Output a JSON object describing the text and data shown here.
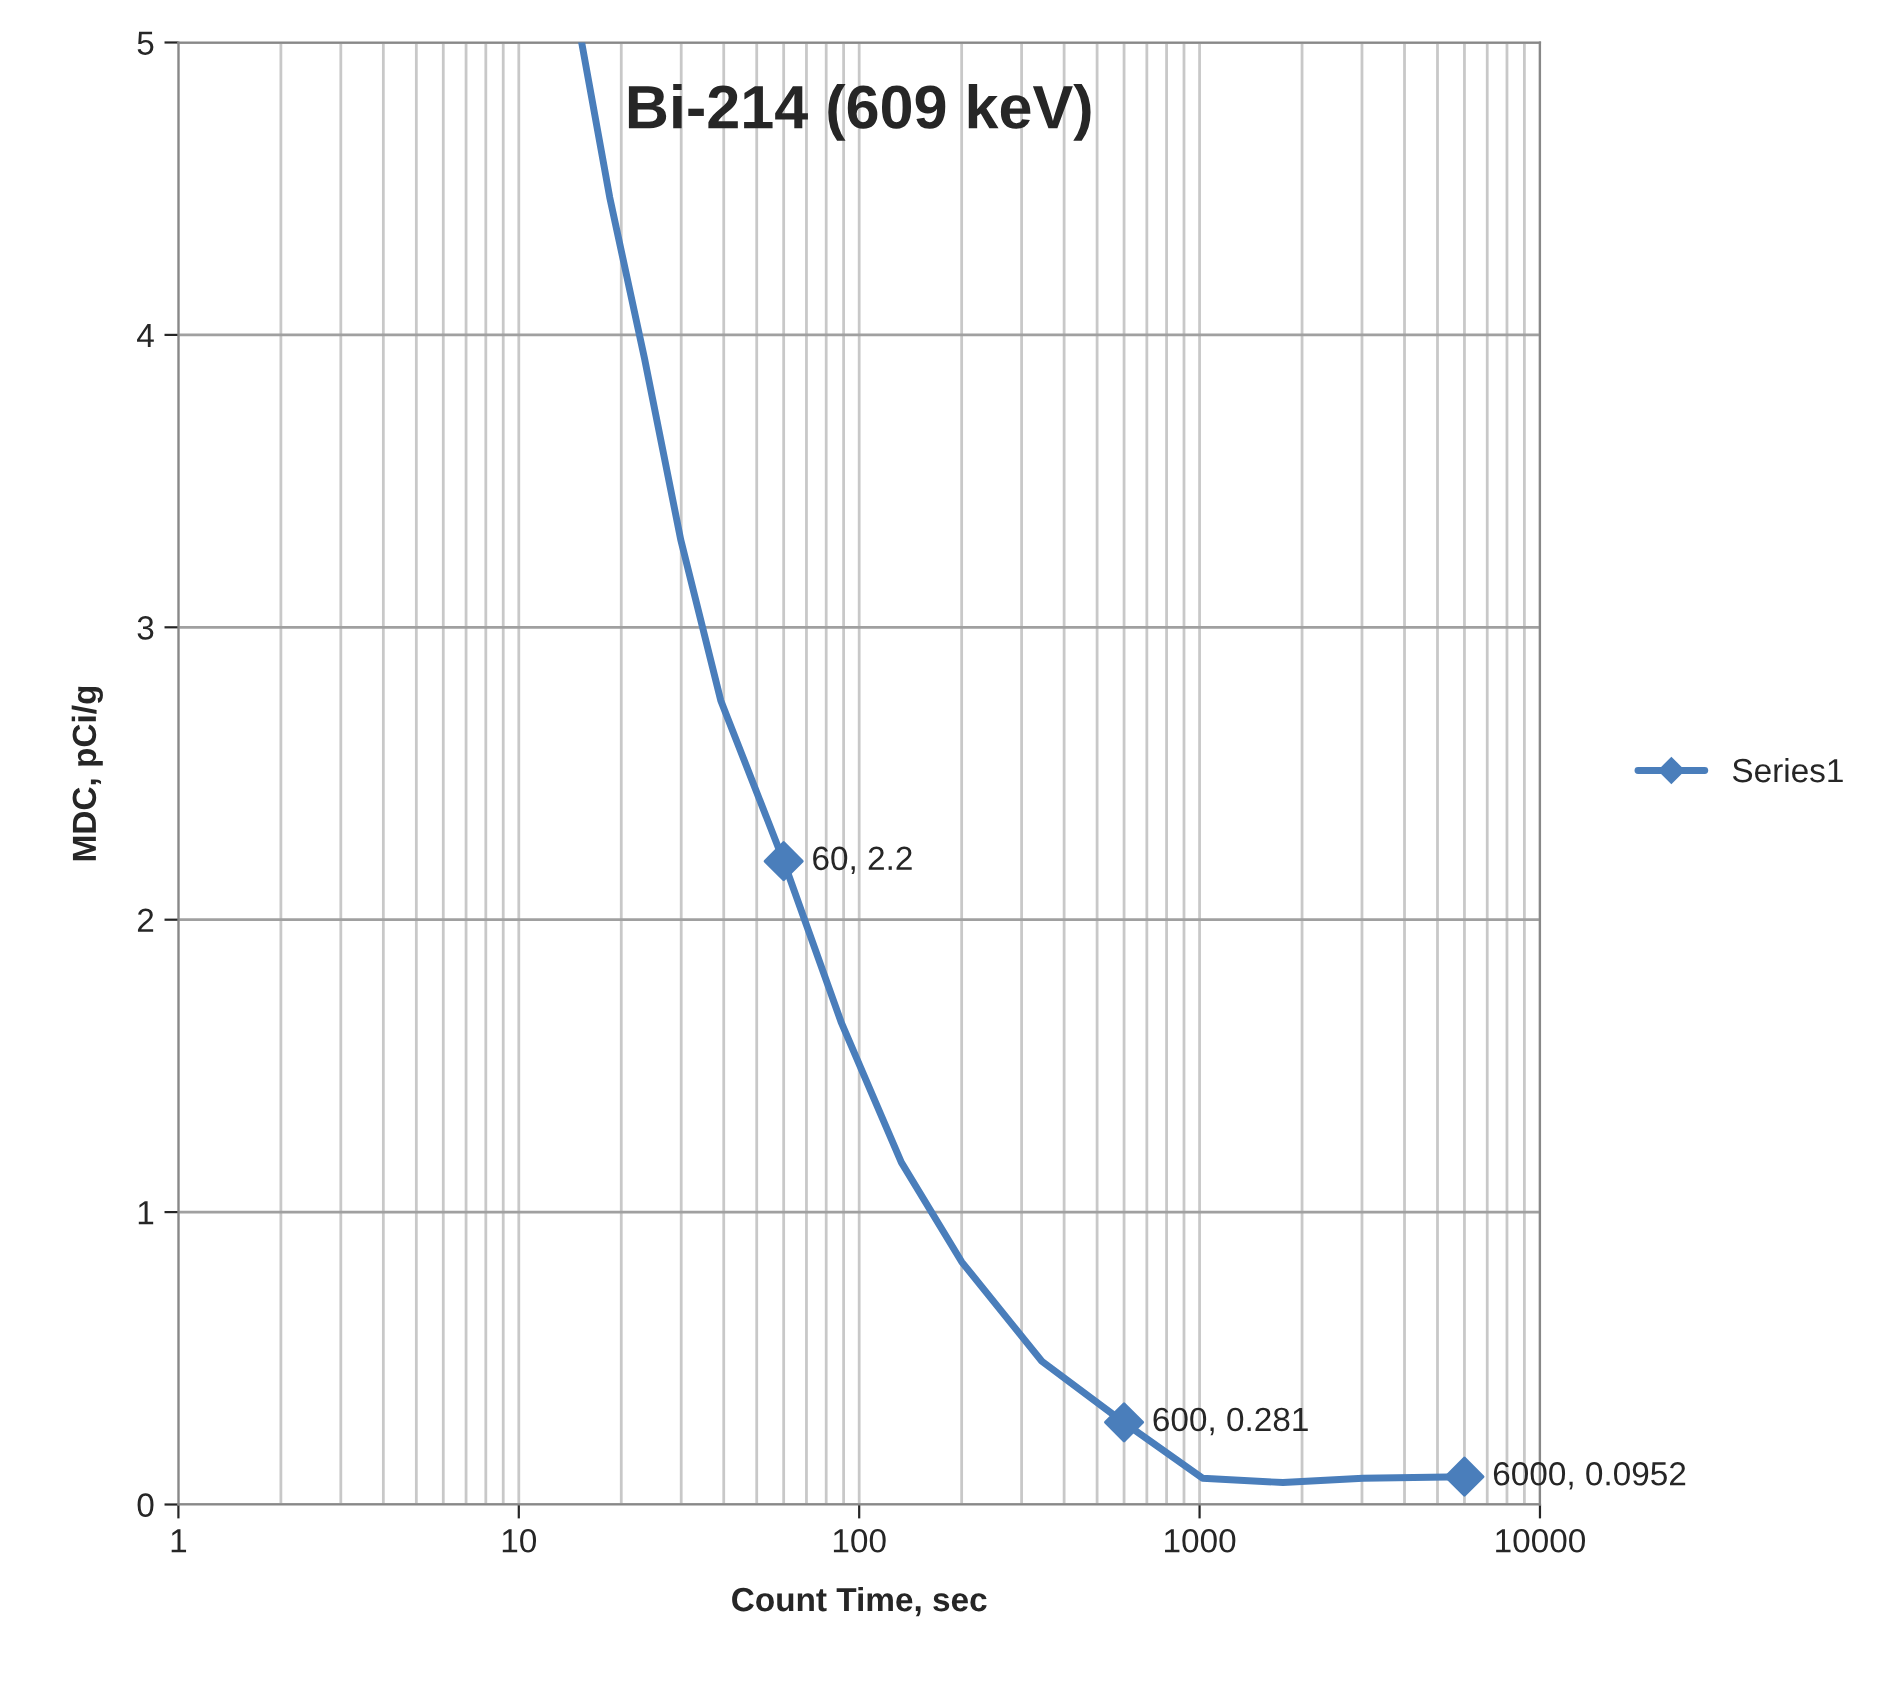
{
  "chart_data": {
    "type": "line",
    "title": "Bi-214 (609 keV)",
    "xlabel": "Count Time, sec",
    "ylabel": "MDC, pCi/g",
    "series": [
      {
        "name": "Series1",
        "type": "scatter",
        "color": "#4a7ebb",
        "x": [
          60,
          600,
          6000
        ],
        "values": [
          2.2,
          0.281,
          0.0952
        ],
        "value_labels": [
          "60, 2.2",
          "600, 0.281",
          "6000, 0.0952"
        ],
        "marker": "diamond"
      },
      {
        "color": "#4a7ebb",
        "x": [
          15.3,
          18.5,
          23.4,
          29.9,
          39.2,
          60,
          88.5,
          133,
          200,
          344,
          600,
          1020,
          1758,
          3020,
          6000
        ],
        "values": [
          5,
          4.47,
          3.92,
          3.3,
          2.75,
          2.2,
          1.65,
          1.17,
          0.83,
          0.49,
          0.28,
          0.09,
          0.075,
          0.09,
          0.095
        ]
      }
    ],
    "log": "x",
    "xlim": [
      1,
      10000
    ],
    "xticks": [
      1,
      10,
      100,
      1000,
      10000
    ],
    "ylim": [
      0,
      5
    ],
    "yticks": [
      0,
      1,
      2,
      3,
      4,
      5
    ],
    "grid": true,
    "legend": "right"
  }
}
